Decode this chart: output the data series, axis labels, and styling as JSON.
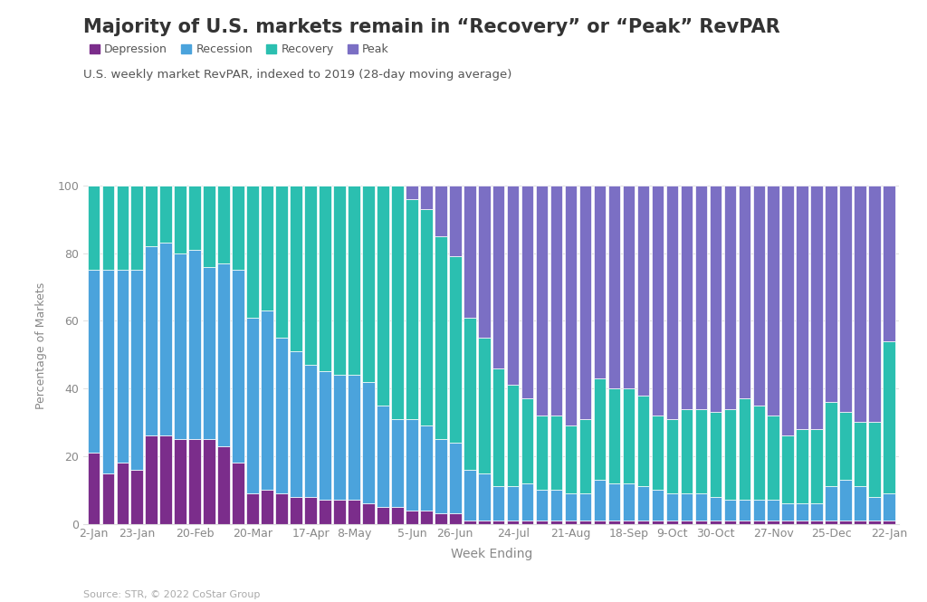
{
  "title": "Majority of U.S. markets remain in “Recovery” or “Peak” RevPAR",
  "subtitle": "U.S. weekly market RevPAR, indexed to 2019 (28-day moving average)",
  "xlabel": "Week Ending",
  "ylabel": "Percentage of Markets",
  "source": "Source: STR, © 2022 CoStar Group",
  "legend_labels": [
    "Depression",
    "Recession",
    "Recovery",
    "Peak"
  ],
  "colors": {
    "Depression": "#7B2D8B",
    "Recession": "#4BA3DC",
    "Recovery": "#2BBFB0",
    "Peak": "#7B6FC4"
  },
  "x_tick_labels": [
    "2-Jan",
    "23-Jan",
    "20-Feb",
    "20-Mar",
    "17-Apr",
    "8-May",
    "5-Jun",
    "26-Jun",
    "24-Jul",
    "21-Aug",
    "18-Sep",
    "9-Oct",
    "30-Oct",
    "27-Nov",
    "25-Dec",
    "22-Jan"
  ],
  "tick_positions": [
    0,
    3,
    7,
    11,
    15,
    18,
    22,
    25,
    29,
    33,
    37,
    40,
    43,
    47,
    51,
    55
  ],
  "background_color": "#FFFFFF",
  "bar_edge_color": "#FFFFFF",
  "data": {
    "Depression": [
      21,
      15,
      18,
      16,
      26,
      26,
      25,
      25,
      25,
      23,
      18,
      9,
      10,
      9,
      8,
      8,
      7,
      7,
      7,
      6,
      5,
      5,
      4,
      4,
      3,
      3,
      1,
      1,
      1,
      1,
      1,
      1,
      1,
      1,
      1,
      1,
      1,
      1,
      1,
      1,
      1,
      1,
      1,
      1,
      1,
      1,
      1,
      1,
      1,
      1,
      1,
      1,
      1,
      1,
      1,
      1
    ],
    "Recession": [
      54,
      60,
      57,
      59,
      56,
      57,
      55,
      56,
      51,
      54,
      57,
      52,
      53,
      46,
      43,
      39,
      38,
      37,
      37,
      36,
      30,
      26,
      27,
      25,
      22,
      21,
      15,
      14,
      10,
      10,
      11,
      9,
      9,
      8,
      8,
      12,
      11,
      11,
      10,
      9,
      8,
      8,
      8,
      7,
      6,
      6,
      6,
      6,
      5,
      5,
      5,
      10,
      12,
      10,
      7,
      8
    ],
    "Recovery": [
      25,
      25,
      25,
      25,
      18,
      17,
      20,
      19,
      24,
      23,
      25,
      39,
      37,
      45,
      49,
      53,
      55,
      56,
      56,
      58,
      65,
      69,
      65,
      64,
      60,
      55,
      45,
      40,
      35,
      30,
      25,
      22,
      22,
      20,
      22,
      30,
      28,
      28,
      27,
      22,
      22,
      25,
      25,
      25,
      27,
      30,
      28,
      25,
      20,
      22,
      22,
      25,
      20,
      19,
      22,
      45
    ],
    "Peak": [
      0,
      0,
      0,
      0,
      0,
      0,
      0,
      0,
      0,
      0,
      0,
      0,
      0,
      0,
      0,
      0,
      0,
      0,
      0,
      0,
      0,
      0,
      4,
      7,
      15,
      21,
      39,
      45,
      54,
      59,
      63,
      68,
      68,
      71,
      69,
      57,
      60,
      60,
      62,
      68,
      69,
      66,
      66,
      67,
      66,
      63,
      65,
      68,
      74,
      72,
      72,
      64,
      67,
      70,
      70,
      46
    ]
  }
}
